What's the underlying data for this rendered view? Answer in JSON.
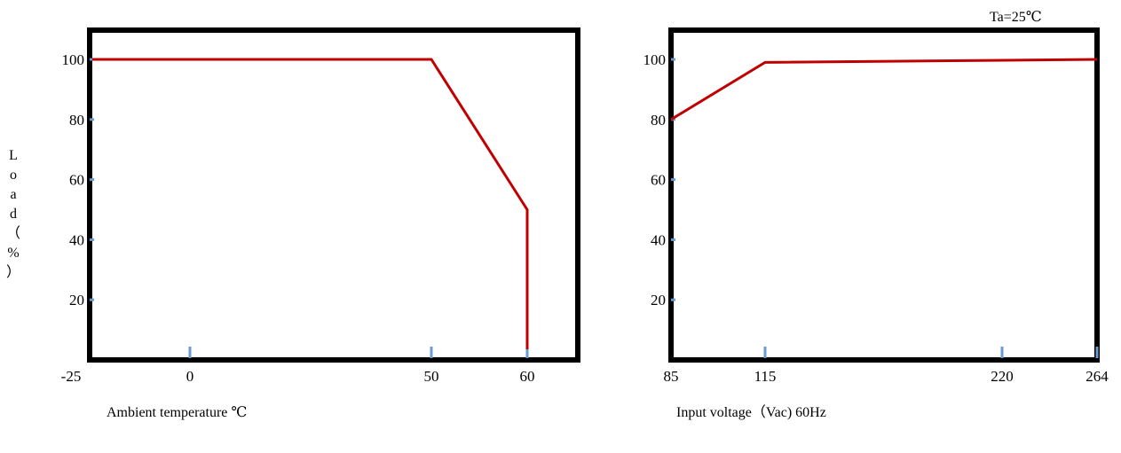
{
  "ylabel_chars": [
    "L",
    "o",
    "a",
    "d",
    "（",
    "%",
    "）"
  ],
  "chart_data": [
    {
      "type": "line",
      "xlabel": "Ambient temperature ℃",
      "ylabel": "Load（%）",
      "x_categories": [
        "-25",
        "0",
        "50",
        "60"
      ],
      "y_ticks": [
        "20",
        "40",
        "60",
        "80",
        "100"
      ],
      "series": [
        {
          "points": [
            [
              -25,
              100
            ],
            [
              50,
              100
            ],
            [
              60,
              50
            ],
            [
              60,
              0
            ]
          ]
        }
      ],
      "xlim": [
        -25,
        75
      ],
      "ylim": [
        0,
        110
      ],
      "grid": false,
      "colors": {
        "line": "#c00000",
        "tick": "#6a9bd0",
        "frame": "#000000"
      }
    },
    {
      "type": "line",
      "annotation": "Ta=25℃",
      "xlabel": "Input voltage（Vac) 60Hz",
      "x_categories": [
        "85",
        "115",
        "220",
        "264"
      ],
      "y_ticks": [
        "20",
        "40",
        "60",
        "80",
        "100"
      ],
      "series": [
        {
          "points": [
            [
              85,
              80
            ],
            [
              115,
              99
            ],
            [
              264,
              100
            ]
          ]
        }
      ],
      "xlim": [
        85,
        264
      ],
      "ylim": [
        0,
        110
      ],
      "grid": false,
      "colors": {
        "line": "#c00000",
        "tick": "#6a9bd0",
        "frame": "#000000"
      }
    }
  ]
}
